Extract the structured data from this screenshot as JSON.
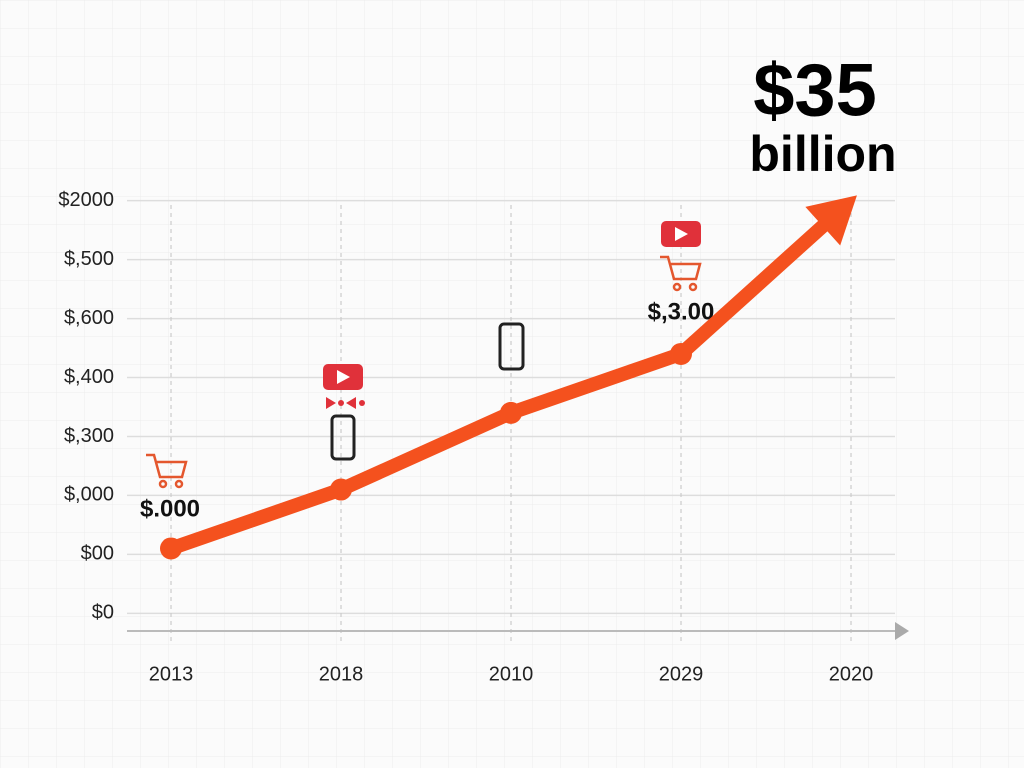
{
  "chart_data": {
    "type": "line",
    "headline": [
      "$35",
      "billion"
    ],
    "categories": [
      "2013",
      "2018",
      "2010",
      "2029",
      "2020"
    ],
    "series": [
      {
        "color": "#f4511e",
        "values": [
          1.1,
          2.1,
          3.4,
          4.4,
          7.0
        ]
      }
    ],
    "ylim": [
      -0.3,
      7.3
    ],
    "yticks": [
      {
        "value": 0,
        "label": "$0"
      },
      {
        "value": 1,
        "label": "$00"
      },
      {
        "value": 2,
        "label": "$,000"
      },
      {
        "value": 3,
        "label": "$,300"
      },
      {
        "value": 4,
        "label": "$,400"
      },
      {
        "value": 5,
        "label": "$,600"
      },
      {
        "value": 6,
        "label": "$,500"
      },
      {
        "value": 7,
        "label": "$2000"
      }
    ],
    "annotations": [
      "$.000",
      "$,3.00"
    ],
    "grid": true
  }
}
